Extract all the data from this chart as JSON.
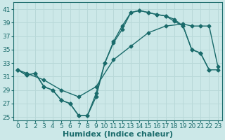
{
  "xlabel": "Humidex (Indice chaleur)",
  "bg_color": "#cce8e8",
  "grid_color": "#b8d8d8",
  "line_color": "#1a6b6b",
  "xlim": [
    -0.5,
    23.5
  ],
  "ylim": [
    24.5,
    42
  ],
  "xticks": [
    0,
    1,
    2,
    3,
    4,
    5,
    6,
    7,
    8,
    9,
    10,
    11,
    12,
    13,
    14,
    15,
    16,
    17,
    18,
    19,
    20,
    21,
    22,
    23
  ],
  "yticks": [
    25,
    27,
    29,
    31,
    33,
    35,
    37,
    39,
    41
  ],
  "line1_x": [
    0,
    1,
    2,
    3,
    4,
    5,
    6,
    7,
    8,
    9,
    10,
    11,
    12,
    13,
    14,
    15,
    16,
    17,
    18,
    19,
    20,
    21,
    22
  ],
  "line1_y": [
    32.0,
    31.2,
    31.5,
    29.5,
    29.0,
    27.5,
    27.0,
    25.2,
    25.2,
    28.5,
    33.0,
    36.0,
    38.0,
    40.5,
    40.8,
    40.5,
    40.2,
    40.0,
    39.2,
    38.5,
    35.0,
    34.5,
    32.0
  ],
  "line2_x": [
    0,
    1,
    3,
    5,
    7,
    9,
    11,
    13,
    15,
    17,
    19,
    20,
    21,
    22,
    23
  ],
  "line2_y": [
    32.0,
    31.5,
    30.5,
    29.0,
    28.0,
    29.5,
    33.5,
    35.5,
    37.5,
    38.5,
    38.8,
    38.5,
    38.5,
    38.5,
    32.5
  ],
  "line3_x": [
    0,
    1,
    2,
    3,
    4,
    5,
    6,
    7,
    8,
    9,
    10,
    11,
    12,
    13,
    14,
    15,
    16,
    17,
    18,
    19,
    20,
    21,
    22,
    23
  ],
  "line3_y": [
    32.0,
    31.2,
    31.5,
    29.5,
    29.0,
    27.5,
    27.0,
    25.2,
    25.2,
    28.0,
    33.0,
    36.2,
    38.5,
    40.5,
    40.8,
    40.5,
    40.2,
    40.0,
    39.5,
    38.5,
    35.0,
    34.5,
    32.0,
    32.0
  ],
  "xlabel_fontsize": 8,
  "tick_fontsize": 6.5,
  "figwidth": 3.2,
  "figheight": 2.0,
  "dpi": 100
}
